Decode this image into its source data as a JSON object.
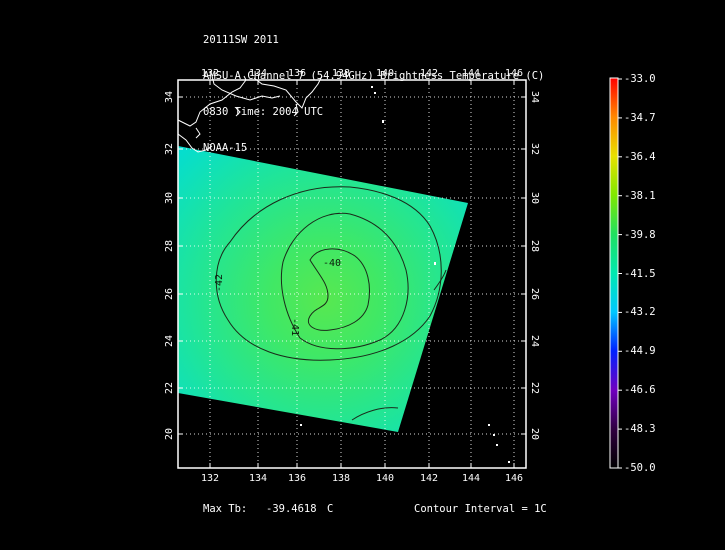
{
  "header": {
    "line1": "20111SW 2011",
    "line2": "AMSU-A Channel 7 (54.94GHz) Brightness Temperature (C)",
    "line3": "0830 Time: 2004 UTC",
    "line4": "NOAA-15"
  },
  "axes": {
    "lon_labels": [
      "132",
      "134",
      "136",
      "138",
      "140",
      "142",
      "144",
      "146"
    ],
    "lat_labels": [
      "20",
      "22",
      "24",
      "26",
      "28",
      "30",
      "32",
      "34"
    ]
  },
  "contours": {
    "labels": [
      "-40",
      "-41",
      "-42"
    ]
  },
  "colorbar": {
    "labels": [
      "-33.0",
      "-34.7",
      "-36.4",
      "-38.1",
      "-39.8",
      "-41.5",
      "-43.2",
      "-44.9",
      "-46.6",
      "-48.3",
      "-50.0"
    ],
    "colors": [
      "#ff0000",
      "#ff8800",
      "#e8e000",
      "#80e800",
      "#20e060",
      "#00e8b0",
      "#00c8ff",
      "#0020ff",
      "#7000c0",
      "#300040",
      "#000000"
    ]
  },
  "footer": {
    "max_label": "Max Tb:",
    "max_value": "-39.4618",
    "max_unit": "C",
    "interval": "Contour Interval = 1C"
  }
}
